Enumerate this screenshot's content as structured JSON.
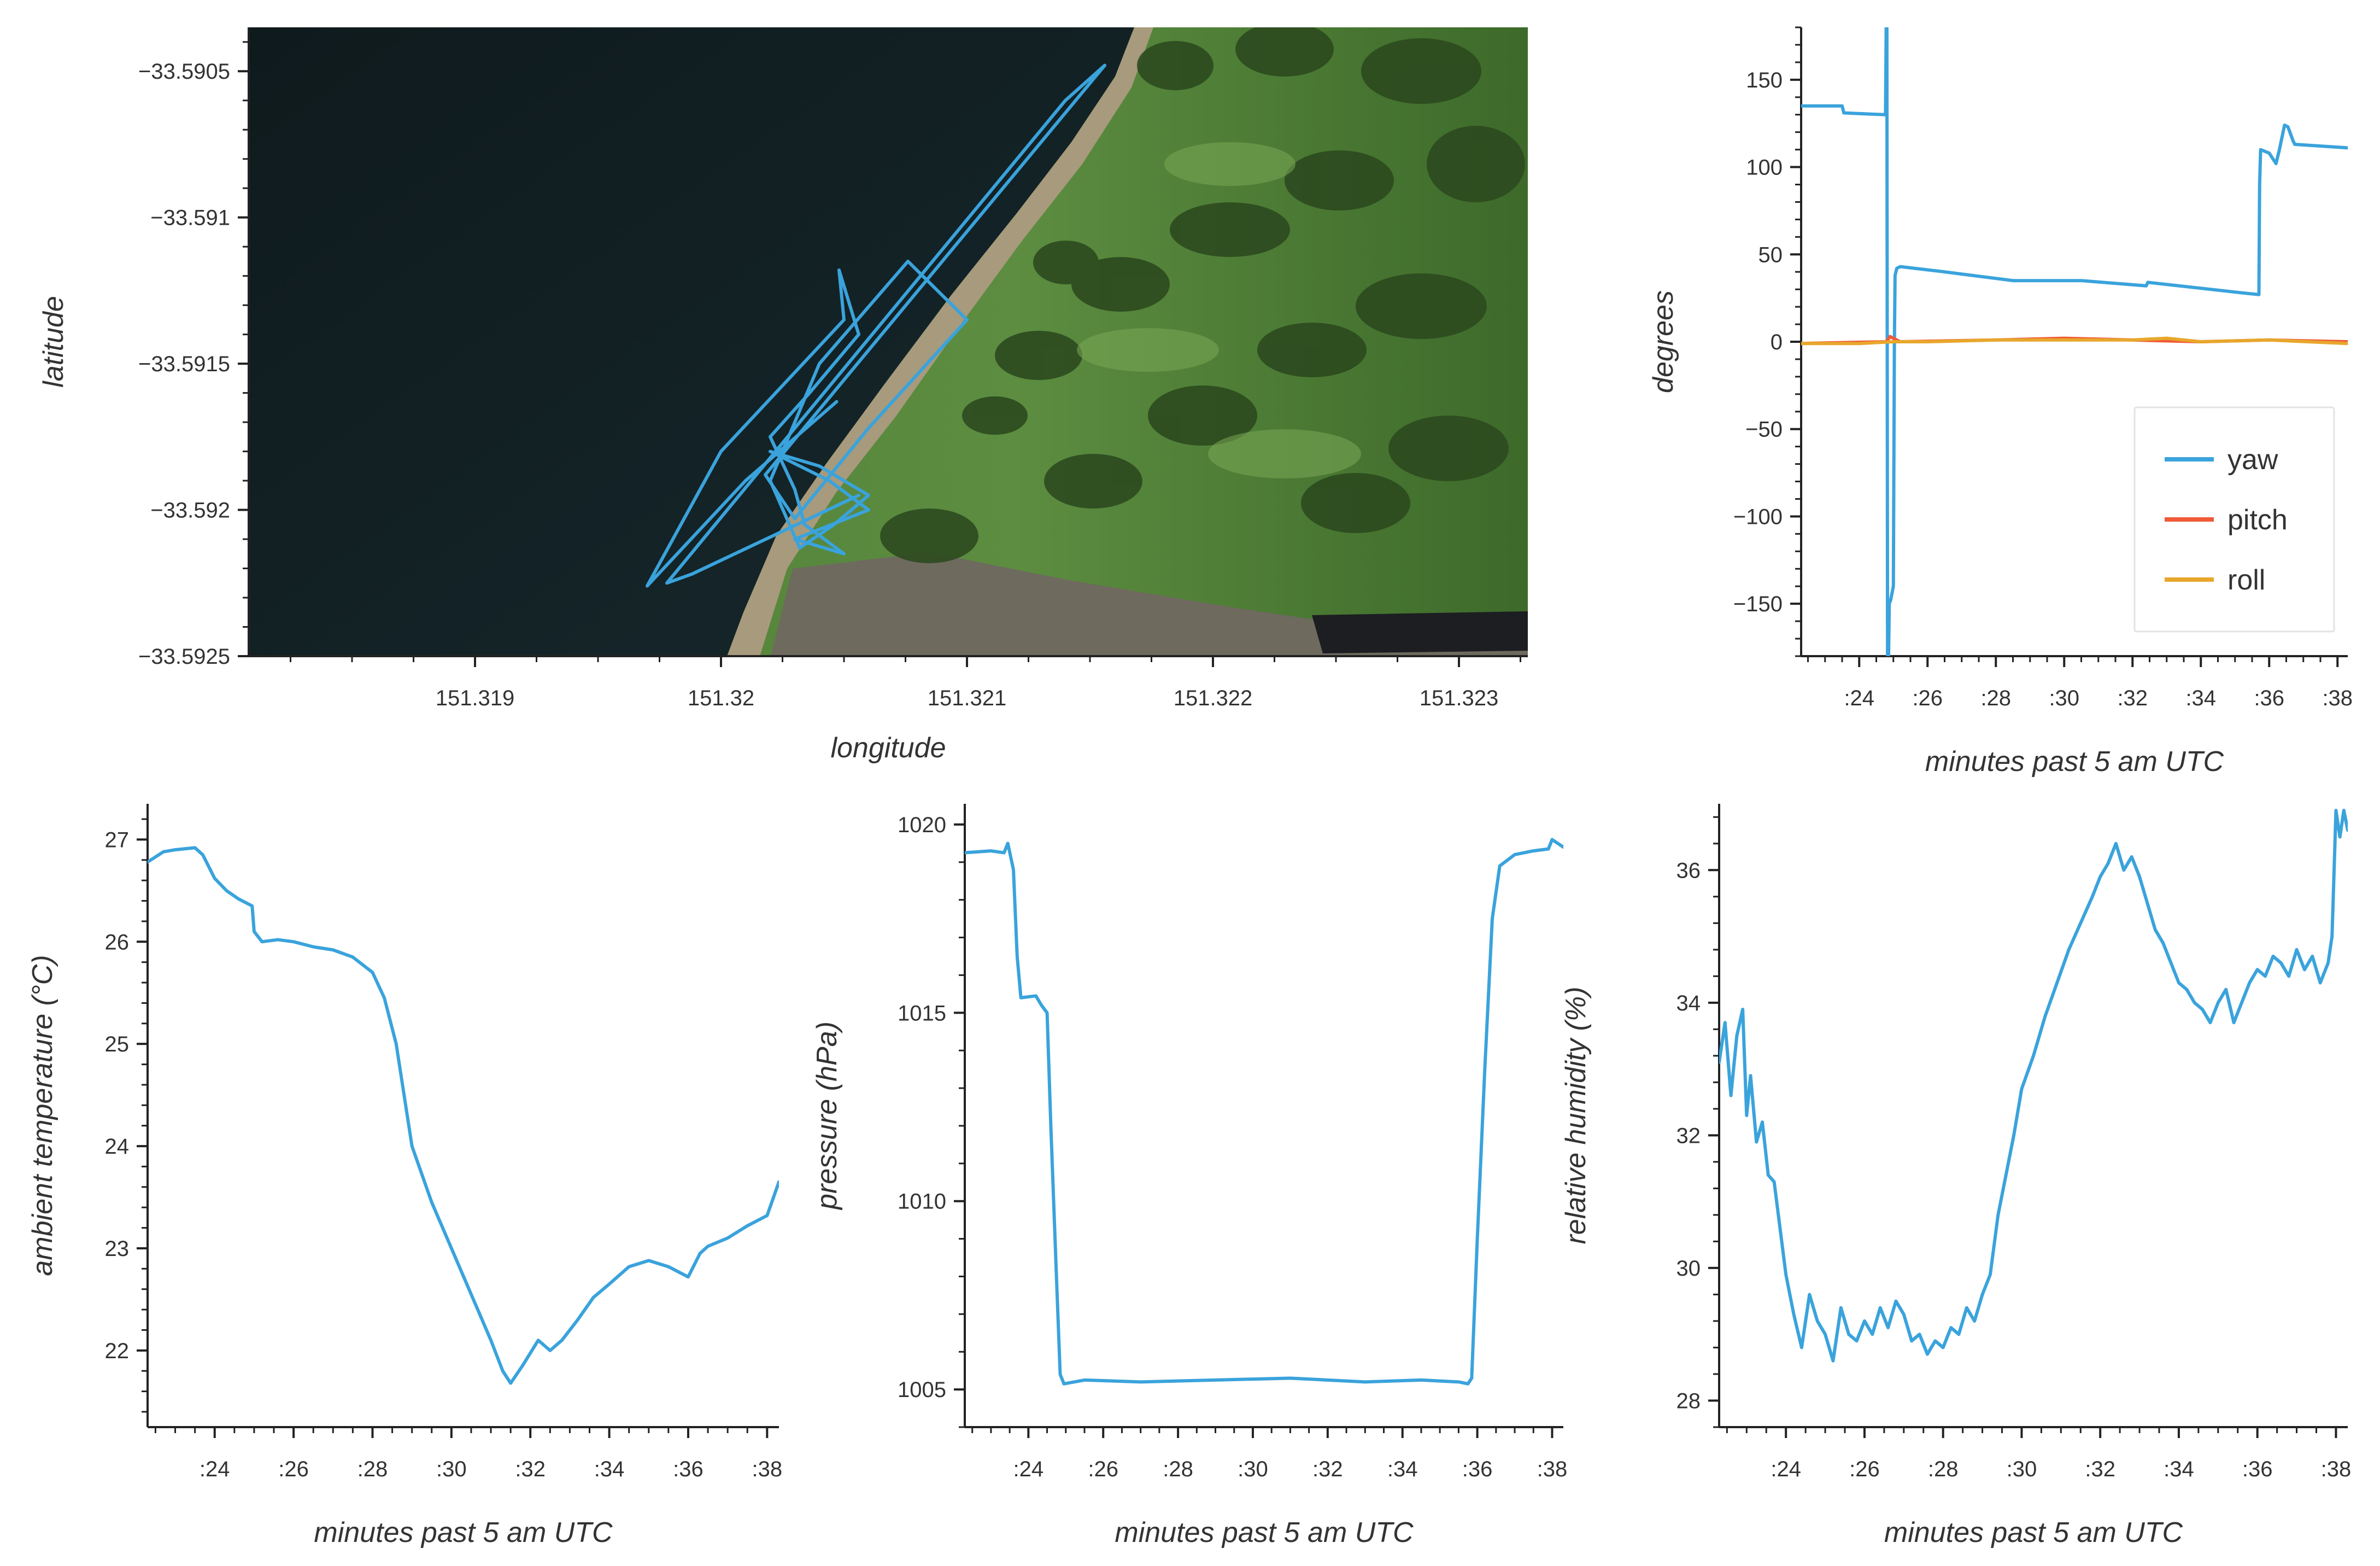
{
  "chart_data": [
    {
      "id": "map",
      "type": "scatter",
      "xlabel": "longitude",
      "ylabel": "latitude",
      "xlim": [
        151.31808,
        151.32328
      ],
      "ylim": [
        -33.5925,
        -33.59035
      ],
      "xticks": [
        151.319,
        151.32,
        151.321,
        151.322,
        151.323
      ],
      "xtick_labels": [
        "151.319",
        "151.32",
        "151.321",
        "151.322",
        "151.323"
      ],
      "yticks": [
        -33.5905,
        -33.591,
        -33.5915,
        -33.592,
        -33.5925
      ],
      "ytick_labels": [
        "−33.5905",
        "−33.591",
        "−33.5915",
        "−33.592",
        "−33.5925"
      ],
      "background": "satellite imagery",
      "line_color": "#3aa3dc",
      "track": {
        "lon": [
          151.32056,
          151.31988,
          151.31978,
          151.3214,
          151.32156,
          151.32018,
          151.3203,
          151.3206,
          151.321,
          151.32076,
          151.3204,
          151.3202,
          151.32032,
          151.32046,
          151.3206,
          151.3204,
          151.3202,
          151.32044,
          151.3206,
          151.3203,
          151.3205,
          151.32034,
          151.3203,
          151.3202,
          151.32036,
          151.32056,
          151.32048,
          151.3205,
          151.32,
          151.3197,
          151.3201,
          151.32047
        ],
        "lat": [
          -33.59195,
          -33.59222,
          -33.59225,
          -33.5906,
          -33.59048,
          -33.59188,
          -33.59203,
          -33.59172,
          -33.59135,
          -33.59115,
          -33.5915,
          -33.5919,
          -33.59213,
          -33.59205,
          -33.59195,
          -33.59185,
          -33.5918,
          -33.5919,
          -33.592,
          -33.5921,
          -33.59215,
          -33.59205,
          -33.59193,
          -33.59175,
          -33.5916,
          -33.5914,
          -33.59118,
          -33.59135,
          -33.5918,
          -33.59226,
          -33.5919,
          -33.59163
        ]
      }
    },
    {
      "id": "attitude",
      "type": "line",
      "xlabel": "minutes past 5 am UTC",
      "ylabel": "degrees",
      "xlim": [
        22.3,
        38.3
      ],
      "ylim": [
        -180,
        180
      ],
      "xticks": [
        24,
        26,
        28,
        30,
        32,
        34,
        36,
        38
      ],
      "xtick_labels": [
        ":24",
        ":26",
        ":28",
        ":30",
        ":32",
        ":34",
        ":36",
        ":38"
      ],
      "yticks": [
        150,
        100,
        50,
        0,
        -50,
        -100,
        -150
      ],
      "ytick_labels": [
        "150",
        "100",
        "50",
        "0",
        "−50",
        "−100",
        "−150"
      ],
      "legend": {
        "position": "bottom-right",
        "entries": [
          "yaw",
          "pitch",
          "roll"
        ]
      },
      "series": [
        {
          "name": "yaw",
          "color": "#3aa3dc",
          "x": [
            22.3,
            23.5,
            23.55,
            24.75,
            24.77,
            24.79,
            24.81,
            24.83,
            24.86,
            24.88,
            24.92,
            25.0,
            25.03,
            25.05,
            25.1,
            25.2,
            26.5,
            28.5,
            30.5,
            32.4,
            32.45,
            35.2,
            35.7,
            35.72,
            35.75,
            36.0,
            36.2,
            36.3,
            36.45,
            36.55,
            36.7,
            36.75,
            38.3
          ],
          "y": [
            135,
            135,
            131,
            130,
            130,
            180,
            180,
            -180,
            -180,
            -150,
            -148,
            -140,
            0,
            38,
            42,
            43,
            40,
            35,
            35,
            32,
            34,
            28,
            27,
            90,
            110,
            108,
            102,
            110,
            124,
            123,
            115,
            113,
            111
          ]
        },
        {
          "name": "pitch",
          "color": "#f05a37",
          "x": [
            22.3,
            24.8,
            24.9,
            25.0,
            25.2,
            28.0,
            30.0,
            32.0,
            34.0,
            36.0,
            38.3
          ],
          "y": [
            -1,
            0,
            3,
            2,
            0,
            1,
            2,
            1,
            0,
            1,
            0
          ]
        },
        {
          "name": "roll",
          "color": "#e8a72c",
          "x": [
            22.3,
            24.0,
            25.0,
            26.0,
            28.0,
            30.0,
            32.0,
            33.0,
            34.0,
            36.0,
            38.3
          ],
          "y": [
            -1,
            -1,
            0,
            0,
            1,
            1,
            1,
            2,
            0,
            1,
            -1
          ]
        }
      ]
    },
    {
      "id": "temperature",
      "type": "line",
      "xlabel": "minutes past 5 am UTC",
      "ylabel": "ambient temperature (°C)",
      "xlim": [
        22.3,
        38.3
      ],
      "ylim": [
        21.25,
        27.35
      ],
      "xticks": [
        24,
        26,
        28,
        30,
        32,
        34,
        36,
        38
      ],
      "xtick_labels": [
        ":24",
        ":26",
        ":28",
        ":30",
        ":32",
        ":34",
        ":36",
        ":38"
      ],
      "yticks": [
        27,
        26,
        25,
        24,
        23,
        22
      ],
      "ytick_labels": [
        "27",
        "26",
        "25",
        "24",
        "23",
        "22"
      ],
      "series": [
        {
          "name": "",
          "color": "#3aa3dc",
          "x": [
            22.3,
            22.7,
            23.0,
            23.5,
            23.7,
            24.0,
            24.3,
            24.6,
            24.95,
            25.0,
            25.2,
            25.6,
            26.0,
            26.5,
            27.0,
            27.5,
            28.0,
            28.3,
            28.6,
            29.0,
            29.5,
            30.0,
            30.5,
            31.0,
            31.3,
            31.5,
            31.8,
            32.2,
            32.5,
            32.8,
            33.2,
            33.6,
            34.0,
            34.5,
            35.0,
            35.5,
            36.0,
            36.3,
            36.5,
            37.0,
            37.5,
            38.0,
            38.3
          ],
          "y": [
            26.78,
            26.88,
            26.9,
            26.92,
            26.85,
            26.62,
            26.5,
            26.42,
            26.35,
            26.1,
            26.0,
            26.02,
            26.0,
            25.95,
            25.92,
            25.85,
            25.7,
            25.45,
            25.0,
            24.0,
            23.45,
            23.0,
            22.55,
            22.1,
            21.8,
            21.68,
            21.85,
            22.1,
            22.0,
            22.1,
            22.3,
            22.52,
            22.65,
            22.82,
            22.88,
            22.82,
            22.72,
            22.95,
            23.02,
            23.1,
            23.22,
            23.32,
            23.65
          ]
        }
      ]
    },
    {
      "id": "pressure",
      "type": "line",
      "xlabel": "minutes past 5 am UTC",
      "ylabel": "pressure (hPa)",
      "xlim": [
        22.3,
        38.3
      ],
      "ylim": [
        1004.0,
        1020.55
      ],
      "xticks": [
        24,
        26,
        28,
        30,
        32,
        34,
        36,
        38
      ],
      "xtick_labels": [
        ":24",
        ":26",
        ":28",
        ":30",
        ":32",
        ":34",
        ":36",
        ":38"
      ],
      "yticks": [
        1020,
        1015,
        1010,
        1005
      ],
      "ytick_labels": [
        "1020",
        "1015",
        "1010",
        "1005"
      ],
      "series": [
        {
          "name": "",
          "color": "#3aa3dc",
          "x": [
            22.3,
            23.0,
            23.35,
            23.45,
            23.6,
            23.7,
            23.8,
            24.2,
            24.35,
            24.5,
            24.6,
            24.75,
            24.85,
            24.95,
            25.5,
            27.0,
            29.0,
            31.0,
            33.0,
            34.5,
            35.5,
            35.75,
            35.85,
            36.0,
            36.2,
            36.4,
            36.6,
            37.0,
            37.5,
            37.9,
            38.0,
            38.3
          ],
          "y": [
            1019.25,
            1019.3,
            1019.25,
            1019.5,
            1018.8,
            1016.5,
            1015.4,
            1015.45,
            1015.2,
            1015.0,
            1012.0,
            1008.0,
            1005.4,
            1005.15,
            1005.25,
            1005.2,
            1005.25,
            1005.3,
            1005.2,
            1005.25,
            1005.2,
            1005.15,
            1005.3,
            1009.0,
            1013.5,
            1017.5,
            1018.9,
            1019.2,
            1019.3,
            1019.35,
            1019.6,
            1019.4
          ]
        }
      ]
    },
    {
      "id": "humidity",
      "type": "line",
      "xlabel": "minutes past 5 am UTC",
      "ylabel": "relative humidity (%)",
      "xlim": [
        22.3,
        38.3
      ],
      "ylim": [
        27.6,
        37.0
      ],
      "xticks": [
        24,
        26,
        28,
        30,
        32,
        34,
        36,
        38
      ],
      "xtick_labels": [
        ":24",
        ":26",
        ":28",
        ":30",
        ":32",
        ":34",
        ":36",
        ":38"
      ],
      "yticks": [
        36,
        34,
        32,
        30,
        28
      ],
      "ytick_labels": [
        "36",
        "34",
        "32",
        "30",
        "28"
      ],
      "series": [
        {
          "name": "",
          "color": "#3aa3dc",
          "x": [
            22.3,
            22.45,
            22.6,
            22.75,
            22.9,
            23.0,
            23.1,
            23.25,
            23.4,
            23.55,
            23.7,
            23.85,
            24.0,
            24.2,
            24.4,
            24.6,
            24.8,
            25.0,
            25.2,
            25.4,
            25.6,
            25.8,
            26.0,
            26.2,
            26.4,
            26.6,
            26.8,
            27.0,
            27.2,
            27.4,
            27.6,
            27.8,
            28.0,
            28.2,
            28.4,
            28.6,
            28.8,
            29.0,
            29.2,
            29.4,
            29.6,
            29.8,
            30.0,
            30.3,
            30.6,
            30.9,
            31.2,
            31.5,
            31.8,
            32.0,
            32.2,
            32.4,
            32.6,
            32.8,
            33.0,
            33.2,
            33.4,
            33.6,
            33.8,
            34.0,
            34.2,
            34.4,
            34.6,
            34.8,
            35.0,
            35.2,
            35.4,
            35.6,
            35.8,
            36.0,
            36.2,
            36.4,
            36.6,
            36.8,
            37.0,
            37.2,
            37.4,
            37.6,
            37.8,
            37.9,
            38.0,
            38.1,
            38.2,
            38.3
          ],
          "y": [
            33.1,
            33.7,
            32.6,
            33.5,
            33.9,
            32.3,
            32.9,
            31.9,
            32.2,
            31.4,
            31.3,
            30.6,
            29.9,
            29.3,
            28.8,
            29.6,
            29.2,
            29.0,
            28.6,
            29.4,
            29.0,
            28.9,
            29.2,
            29.0,
            29.4,
            29.1,
            29.5,
            29.3,
            28.9,
            29.0,
            28.7,
            28.9,
            28.8,
            29.1,
            29.0,
            29.4,
            29.2,
            29.6,
            29.9,
            30.8,
            31.4,
            32.0,
            32.7,
            33.2,
            33.8,
            34.3,
            34.8,
            35.2,
            35.6,
            35.9,
            36.1,
            36.4,
            36.0,
            36.2,
            35.9,
            35.5,
            35.1,
            34.9,
            34.6,
            34.3,
            34.2,
            34.0,
            33.9,
            33.7,
            34.0,
            34.2,
            33.7,
            34.0,
            34.3,
            34.5,
            34.4,
            34.7,
            34.6,
            34.4,
            34.8,
            34.5,
            34.7,
            34.3,
            34.6,
            35.0,
            36.9,
            36.5,
            36.9,
            36.6
          ]
        }
      ]
    }
  ]
}
